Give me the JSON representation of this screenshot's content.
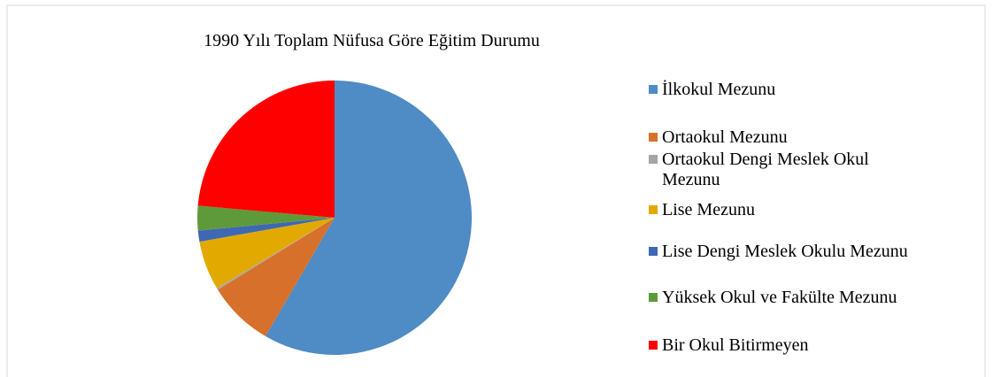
{
  "chart_data": {
    "type": "pie",
    "title": "1990 Yılı Toplam Nüfusa Göre Eğitim Durumu",
    "categories": [
      "İlkokul Mezunu",
      "Ortaokul Mezunu",
      "Ortaokul Dengi Meslek Okul Mezunu",
      "Lise Mezunu",
      "Lise Dengi Meslek Okulu Mezunu",
      "Yüksek Okul ve Fakülte Mezunu",
      "Bir Okul Bitirmeyen"
    ],
    "values": [
      58.4,
      7.8,
      0.2,
      5.8,
      1.3,
      2.9,
      23.6
    ],
    "colors": [
      "#4f8bc4",
      "#d7702b",
      "#a5a5a5",
      "#e2aa00",
      "#3e68b4",
      "#5e9a3a",
      "#ff0000"
    ],
    "legend": "right"
  }
}
